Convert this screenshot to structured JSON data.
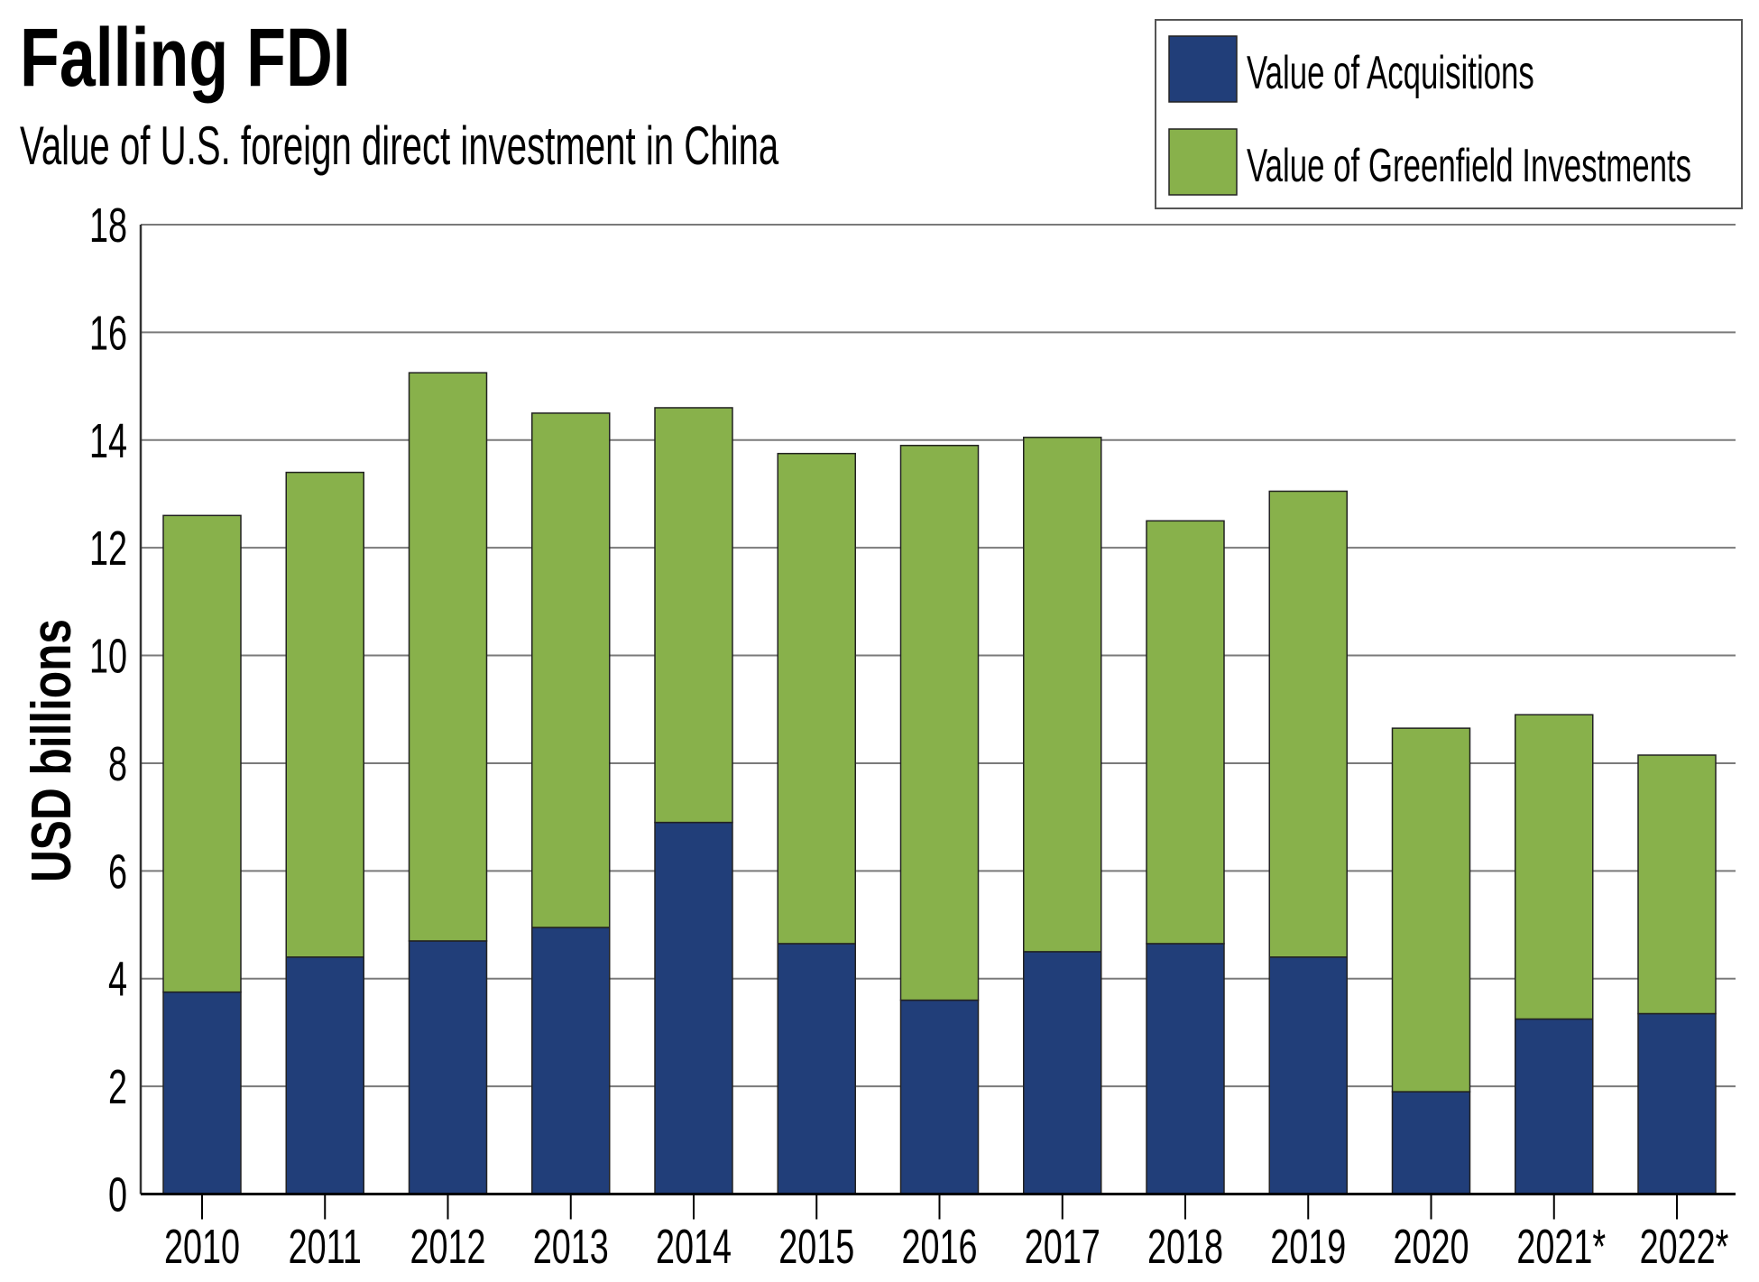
{
  "chart_data": {
    "type": "bar",
    "stacked": true,
    "title": "Falling FDI",
    "subtitle": "Value of U.S. foreign direct investment in China",
    "xlabel": "",
    "ylabel": "USD billions",
    "ylim": [
      0,
      18
    ],
    "yticks": [
      0,
      2,
      4,
      6,
      8,
      10,
      12,
      14,
      16,
      18
    ],
    "ytick_labels": [
      "0",
      "2",
      "4",
      "6",
      "8",
      "10",
      "12",
      "14",
      "16",
      "18"
    ],
    "grid": true,
    "legend_position": "top-right",
    "categories": [
      "2010",
      "2011",
      "2012",
      "2013",
      "2014",
      "2015",
      "2016",
      "2017",
      "2018",
      "2019",
      "2020",
      "2021*",
      "2022*"
    ],
    "series": [
      {
        "name": "Value of Acquisitions",
        "color": "#213E79",
        "values": [
          3.75,
          4.4,
          4.7,
          4.95,
          6.9,
          4.65,
          3.6,
          4.5,
          4.65,
          4.4,
          1.9,
          3.25,
          3.35
        ]
      },
      {
        "name": "Value of Greenfield Investments",
        "color": "#88B14B",
        "values": [
          8.85,
          9.0,
          10.55,
          9.55,
          7.7,
          9.1,
          10.3,
          9.55,
          7.85,
          8.65,
          6.75,
          5.65,
          4.8
        ]
      }
    ],
    "totals": [
      12.6,
      13.4,
      15.25,
      14.5,
      14.6,
      13.75,
      13.9,
      14.05,
      12.5,
      13.05,
      8.65,
      8.9,
      8.15
    ]
  }
}
